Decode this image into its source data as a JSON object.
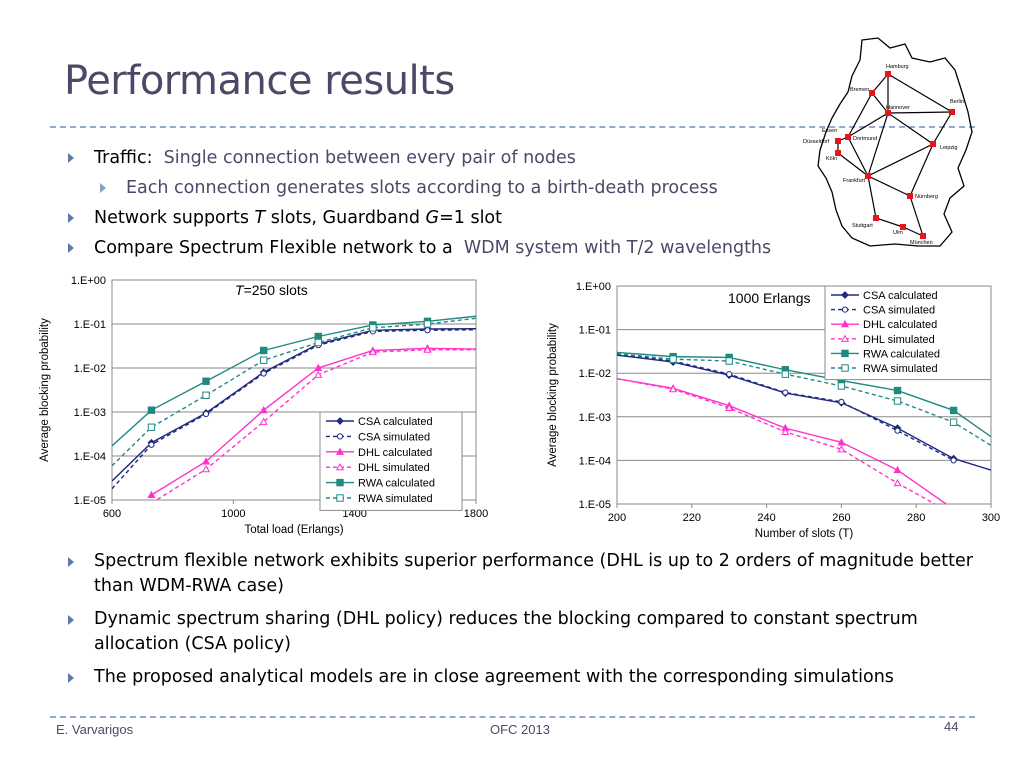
{
  "slide": {
    "title": "Performance results",
    "bullets": {
      "b1_lead": "Traffic:",
      "b1_rest": "Single connection between every pair of nodes",
      "b1_sub": "Each connection generates slots according to a birth-death process",
      "b2_a": "Network supports ",
      "b2_T": "T",
      "b2_b": " slots, Guardband ",
      "b2_G": "G",
      "b2_c": "=1 slot",
      "b3_lead": "Compare Spectrum Flexible network to a",
      "b3_rest": "WDM system with T/2 wavelengths"
    },
    "conclusions": [
      "Spectrum flexible network exhibits superior performance (DHL is up to 2 orders of magnitude better than WDM-RWA case)",
      "Dynamic spectrum sharing (DHL policy) reduces the blocking compared to constant spectrum allocation (CSA policy)",
      "The proposed analytical models are in close agreement with the corresponding simulations"
    ],
    "footer": {
      "author": "E. Varvarigos",
      "venue": "OFC 2013",
      "page": "44"
    }
  },
  "map": {
    "cities": [
      "Hamburg",
      "Bremen",
      "Berlin",
      "Hannover",
      "Essen",
      "Dortmund",
      "Düsseldorf",
      "Köln",
      "Leipzig",
      "Frankfurt",
      "Nürnberg",
      "Stuttgart",
      "Ulm",
      "München"
    ],
    "node_color": "#e8141c"
  },
  "chart_data": [
    {
      "type": "line",
      "annotation_italic": "T",
      "annotation_rest": "=250 slots",
      "xlabel": "Total load (Erlangs)",
      "ylabel": "Average blocking probability",
      "yscale": "log",
      "xlim": [
        600,
        1800
      ],
      "ylim": [
        1e-05,
        1
      ],
      "xticks": [
        "600",
        "1000",
        "1400",
        "1800"
      ],
      "yticks": [
        "1.E-05",
        "1.E-04",
        "1.E-03",
        "1.E-02",
        "1.E-01",
        "1.E+00"
      ],
      "legend_position": "bottom-right",
      "series": [
        {
          "name": "CSA calculated",
          "color": "#1f2a80",
          "dash": false,
          "marker": "diamond",
          "x": [
            600,
            730,
            910,
            1100,
            1280,
            1460,
            1640,
            1800
          ],
          "y": [
            2.7e-05,
            0.0002,
            0.00095,
            0.008,
            0.035,
            0.072,
            0.077,
            0.078
          ]
        },
        {
          "name": "CSA simulated",
          "color": "#1f2a80",
          "dash": true,
          "marker": "circle-open",
          "x": [
            600,
            730,
            910,
            1100,
            1280,
            1460,
            1640,
            1800
          ],
          "y": [
            1.8e-05,
            0.00018,
            0.0009,
            0.0075,
            0.033,
            0.068,
            0.072,
            0.074
          ]
        },
        {
          "name": "DHL calculated",
          "color": "#ff33cc",
          "dash": false,
          "marker": "triangle",
          "x": [
            730,
            910,
            1100,
            1280,
            1460,
            1640,
            1800
          ],
          "y": [
            1.3e-05,
            7.5e-05,
            0.0011,
            0.01,
            0.025,
            0.028,
            0.027
          ]
        },
        {
          "name": "DHL simulated",
          "color": "#ff33cc",
          "dash": true,
          "marker": "triangle-open",
          "x": [
            730,
            910,
            1100,
            1280,
            1460,
            1640,
            1800
          ],
          "y": [
            8.5e-06,
            5e-05,
            0.0006,
            0.007,
            0.023,
            0.026,
            0.026
          ]
        },
        {
          "name": "RWA calculated",
          "color": "#1f8a80",
          "dash": false,
          "marker": "square",
          "x": [
            600,
            730,
            910,
            1100,
            1280,
            1460,
            1640,
            1800
          ],
          "y": [
            0.00017,
            0.0011,
            0.005,
            0.025,
            0.052,
            0.095,
            0.115,
            0.15
          ]
        },
        {
          "name": "RWA simulated",
          "color": "#1f8a80",
          "dash": true,
          "marker": "square-open",
          "x": [
            600,
            730,
            910,
            1100,
            1280,
            1460,
            1640,
            1800
          ],
          "y": [
            6e-05,
            0.00045,
            0.0024,
            0.015,
            0.038,
            0.082,
            0.1,
            0.135
          ]
        }
      ]
    },
    {
      "type": "line",
      "annotation": "1000 Erlangs",
      "xlabel": "Number of slots (T)",
      "ylabel": "Average blocking probability",
      "yscale": "log",
      "xlim": [
        200,
        300
      ],
      "ylim": [
        1e-05,
        1
      ],
      "xticks": [
        "200",
        "220",
        "240",
        "260",
        "280",
        "300"
      ],
      "yticks": [
        "1.E-05",
        "1.E-04",
        "1.E-03",
        "1.E-02",
        "1.E-01",
        "1.E+00"
      ],
      "legend_position": "top-right",
      "series": [
        {
          "name": "CSA calculated",
          "color": "#1f2a80",
          "dash": false,
          "marker": "diamond",
          "x": [
            200,
            215,
            230,
            245,
            260,
            275,
            290,
            300
          ],
          "y": [
            0.026,
            0.018,
            0.009,
            0.0035,
            0.0021,
            0.00055,
            0.00011,
            6e-05
          ]
        },
        {
          "name": "CSA simulated",
          "color": "#1f2a80",
          "dash": true,
          "marker": "circle-open",
          "x": [
            200,
            215,
            230,
            245,
            260,
            275,
            290
          ],
          "y": [
            0.028,
            0.019,
            0.0095,
            0.0036,
            0.0022,
            0.00048,
            0.0001
          ]
        },
        {
          "name": "DHL calculated",
          "color": "#ff33cc",
          "dash": false,
          "marker": "triangle",
          "x": [
            200,
            215,
            230,
            245,
            260,
            275,
            288
          ],
          "y": [
            0.0075,
            0.0045,
            0.0018,
            0.00055,
            0.00026,
            6e-05,
            1e-05
          ]
        },
        {
          "name": "DHL simulated",
          "color": "#ff33cc",
          "dash": true,
          "marker": "triangle-open",
          "x": [
            200,
            215,
            230,
            245,
            260,
            275,
            285
          ],
          "y": [
            0.0075,
            0.0043,
            0.0016,
            0.00045,
            0.00018,
            3e-05,
            1e-05
          ]
        },
        {
          "name": "RWA calculated",
          "color": "#1f8a80",
          "dash": false,
          "marker": "square",
          "x": [
            200,
            215,
            230,
            245,
            260,
            275,
            290,
            300
          ],
          "y": [
            0.03,
            0.024,
            0.023,
            0.012,
            0.0068,
            0.004,
            0.0014,
            0.00035
          ]
        },
        {
          "name": "RWA simulated",
          "color": "#1f8a80",
          "dash": true,
          "marker": "square-open",
          "x": [
            200,
            215,
            230,
            245,
            260,
            275,
            290,
            300
          ],
          "y": [
            0.028,
            0.021,
            0.019,
            0.0095,
            0.0051,
            0.0023,
            0.00075,
            0.00022
          ]
        }
      ]
    }
  ]
}
